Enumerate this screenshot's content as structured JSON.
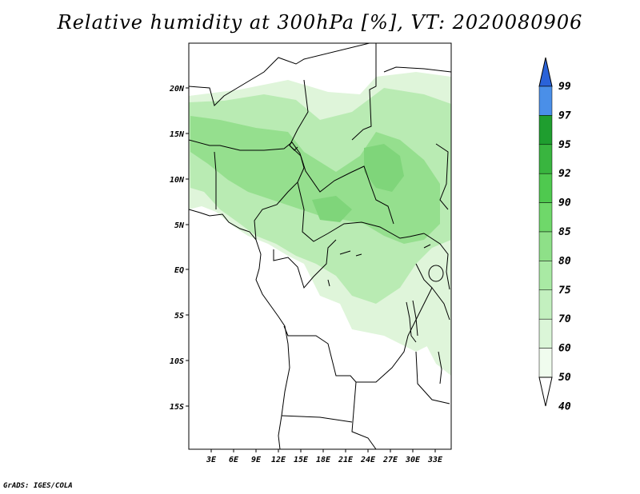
{
  "title": "Relative humidity at 300hPa [%], VT: 2020080906",
  "credit": "GrADS: IGES/COLA",
  "lat_labels": [
    "20N",
    "15N",
    "10N",
    "5N",
    "EQ",
    "5S",
    "10S",
    "15S"
  ],
  "lon_labels": [
    "3E",
    "6E",
    "9E",
    "12E",
    "15E",
    "18E",
    "21E",
    "24E",
    "27E",
    "30E",
    "33E"
  ],
  "colorbar": {
    "levels": [
      "99",
      "97",
      "95",
      "92",
      "90",
      "85",
      "80",
      "75",
      "70",
      "60",
      "50",
      "40"
    ],
    "colors": [
      "#2a62d8",
      "#4a8fe8",
      "#1f9e2f",
      "#39b53f",
      "#4fc94f",
      "#6fd86a",
      "#8ee088",
      "#a9eaa4",
      "#c3f0bf",
      "#dbf6d8",
      "#f0fcee",
      "#ffffff"
    ]
  },
  "humidity_colors": {
    "light": "#dff5da",
    "mid": "#b9ebb3",
    "dark": "#95df8e",
    "darkest": "#7fd57a"
  }
}
